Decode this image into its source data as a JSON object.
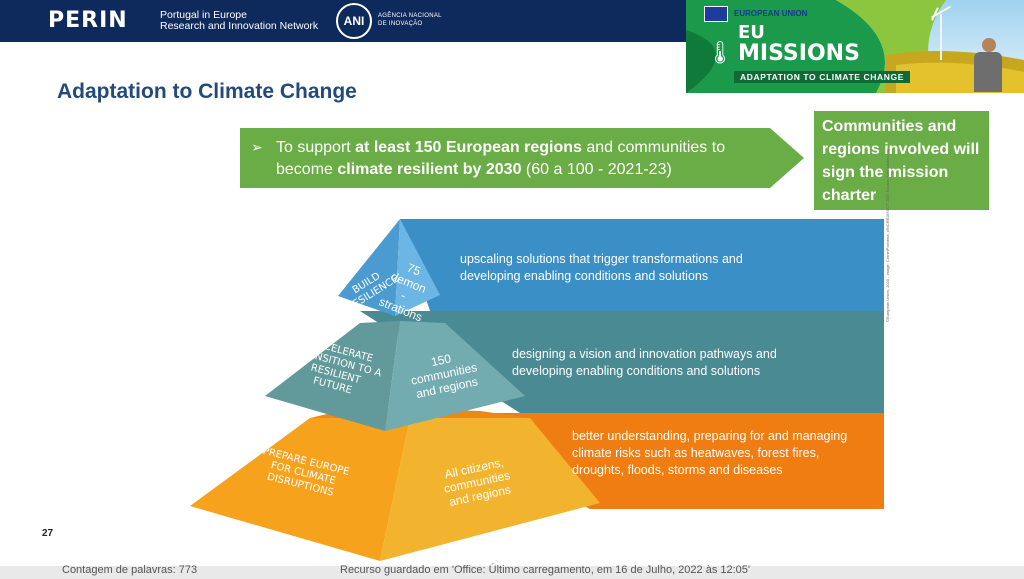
{
  "header": {
    "logo": "PERIN",
    "logo_sub_line1": "Portugal in Europe",
    "logo_sub_line2": "Research and Innovation Network",
    "ani_logo": "ANI",
    "ani_sub_line1": "AGÊNCIA NACIONAL",
    "ani_sub_line2": "DE INOVAÇÃO"
  },
  "eu_banner": {
    "union": "EUROPEAN UNION",
    "eu": "EU",
    "missions": "MISSIONS",
    "subtitle": "ADAPTATION TO CLIMATE CHANGE",
    "icon": "thermometer-globe-icon"
  },
  "slide": {
    "title": "Adaptation to Climate Change",
    "arrow": {
      "bullet": "➢",
      "t1": "To support ",
      "b1": "at least 150 European regions",
      "t2": " and communities to become ",
      "b2": "climate resilient by 2030",
      "t3": " (60 a 100 - 2021-23)"
    },
    "green_box": "Communities and regions involved will sign the mission charter",
    "pyramid": {
      "top": {
        "side": "BUILD RESILIENCE",
        "front": "75 demon -strations",
        "desc": "upscaling solutions that trigger transformations and developing enabling conditions and solutions"
      },
      "middle": {
        "side": "ACCELERATE TRANSITION TO A RESILIENT FUTURE",
        "front": "150 communities and regions",
        "desc": "designing a vision and innovation pathways and developing enabling conditions and solutions"
      },
      "bottom": {
        "side": "PREPARE EUROPE FOR CLIMATE DISRUPTIONS",
        "front": "All citizens, communities and regions",
        "desc": "better understanding, preparing for and managing climate risks such as heatwaves, forest fires, droughts, floods, storms and diseases"
      },
      "credit": "©European Union, 2020 - Image: CornelPochena; #INCREDIFACT 2020 Source: fuse.adobe.com",
      "colors": {
        "top": "#3d93c8",
        "middle": "#4e8f96",
        "bottom": "#f09a1a"
      }
    },
    "page_number": "27"
  },
  "underlying": {
    "left": "Contagem de palavras: 773",
    "right": "Recurso guardado em 'Office: Último carregamento, em 16 de Julho, 2022 às 12:05'"
  }
}
